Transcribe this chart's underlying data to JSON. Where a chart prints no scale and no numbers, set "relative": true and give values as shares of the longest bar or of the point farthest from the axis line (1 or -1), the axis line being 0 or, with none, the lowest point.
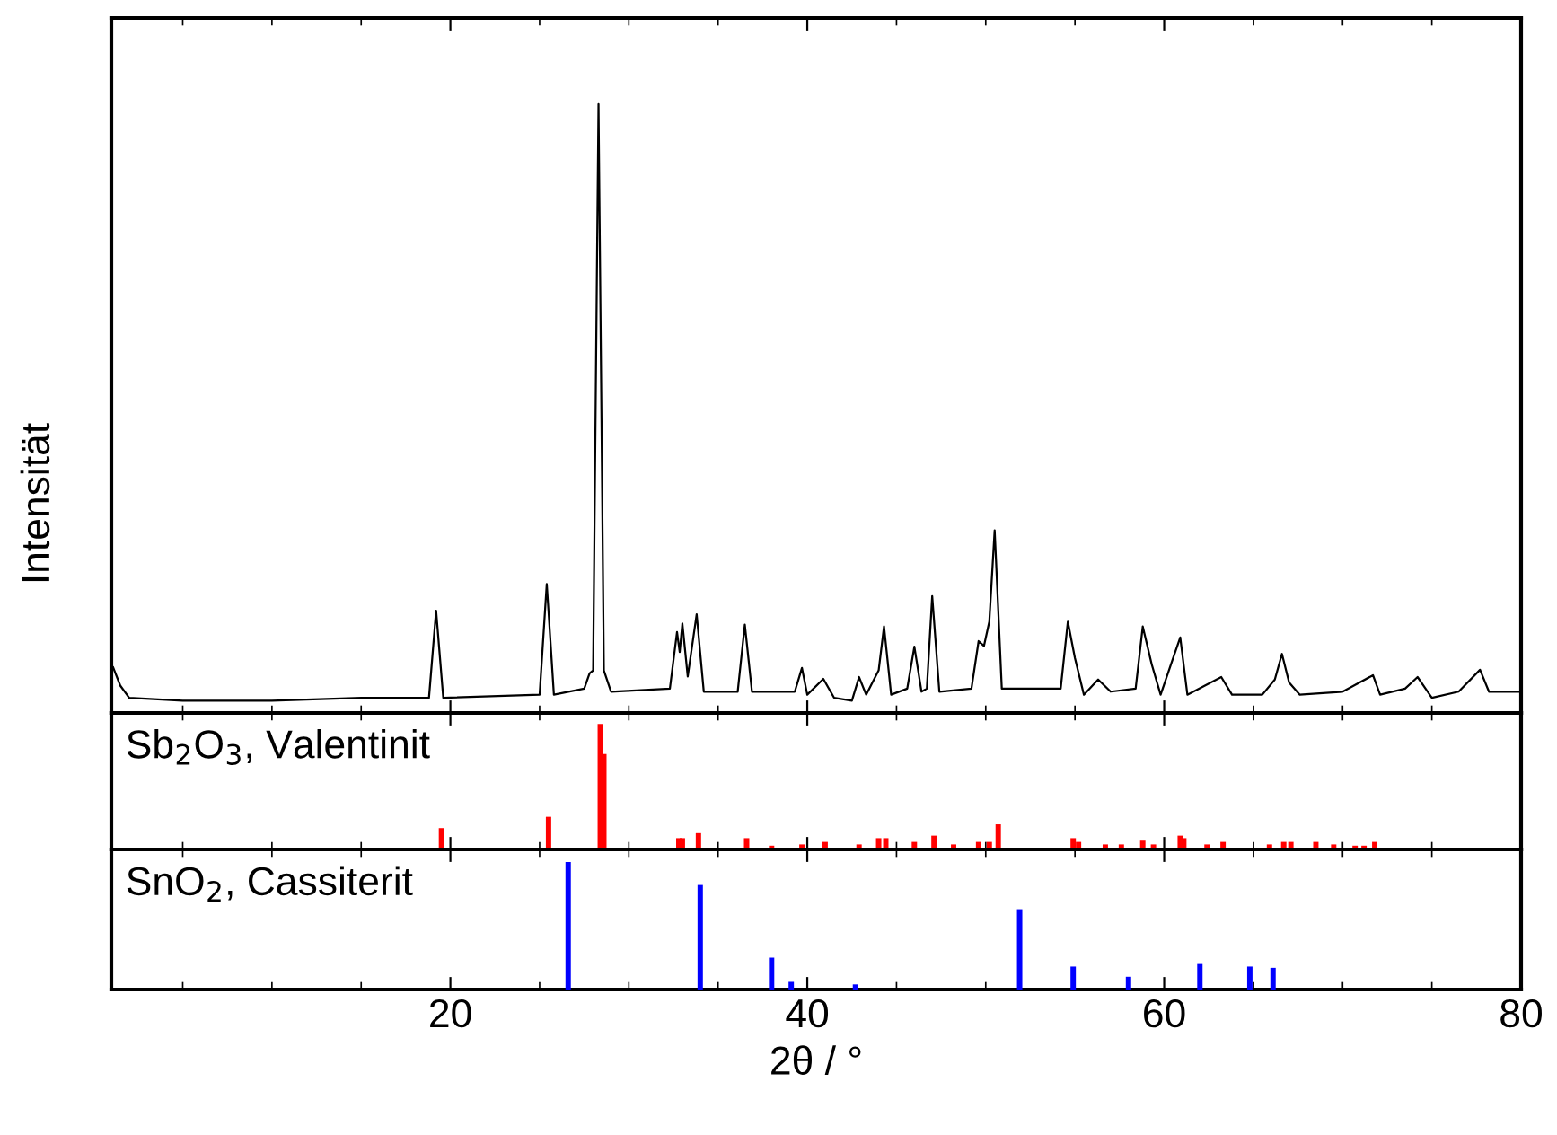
{
  "chart_data": [
    {
      "type": "line",
      "relative": true,
      "ylabel": "Intensität",
      "xlim": [
        1,
        80
      ],
      "xticks": [
        20,
        40,
        60,
        80
      ],
      "tick_labels": false,
      "grid": false,
      "marker": "none",
      "line_style": "solid",
      "series": [
        {
          "color": "#000000",
          "x": [
            1.1,
            1.5,
            2,
            5,
            10,
            15,
            18.8,
            19.2,
            19.6,
            25.0,
            25.4,
            25.8,
            27.5,
            27.8,
            28.0,
            28.3,
            28.6,
            29,
            32.3,
            32.7,
            32.85,
            33.0,
            33.3,
            33.8,
            34.2,
            36.1,
            36.5,
            36.9,
            39.3,
            39.7,
            40.0,
            40.9,
            41.5,
            42.5,
            42.9,
            43.3,
            44.0,
            44.3,
            44.7,
            45.6,
            46.0,
            46.4,
            46.7,
            47.0,
            47.4,
            49.2,
            49.6,
            49.9,
            50.2,
            50.5,
            50.9,
            54.2,
            54.6,
            55.0,
            55.5,
            56.3,
            57.0,
            58.4,
            58.8,
            59.3,
            59.8,
            60.5,
            60.9,
            61.3,
            63.2,
            63.8,
            65.5,
            66.2,
            66.6,
            67.0,
            67.6,
            70,
            71.7,
            72.1,
            73.5,
            74.2,
            75.0,
            76.5,
            77.7,
            78.2,
            80
          ],
          "values": [
            0.075,
            0.045,
            0.025,
            0.02,
            0.02,
            0.025,
            0.025,
            0.168,
            0.025,
            0.03,
            0.212,
            0.03,
            0.04,
            0.065,
            0.07,
            1.0,
            0.07,
            0.035,
            0.04,
            0.133,
            0.1,
            0.147,
            0.06,
            0.162,
            0.035,
            0.035,
            0.145,
            0.035,
            0.035,
            0.074,
            0.03,
            0.056,
            0.025,
            0.02,
            0.059,
            0.03,
            0.07,
            0.142,
            0.03,
            0.04,
            0.109,
            0.035,
            0.04,
            0.192,
            0.035,
            0.04,
            0.118,
            0.11,
            0.15,
            0.3,
            0.04,
            0.04,
            0.15,
            0.09,
            0.03,
            0.055,
            0.035,
            0.04,
            0.142,
            0.08,
            0.03,
            0.09,
            0.124,
            0.03,
            0.059,
            0.03,
            0.03,
            0.055,
            0.097,
            0.05,
            0.03,
            0.035,
            0.062,
            0.03,
            0.04,
            0.059,
            0.025,
            0.035,
            0.071,
            0.035,
            0.035
          ]
        }
      ]
    },
    {
      "type": "bar",
      "relative": true,
      "xlim": [
        1,
        80
      ],
      "xticks": [
        20,
        40,
        60,
        80
      ],
      "tick_labels": false,
      "annotations": [
        "Sb$_{2}$O$_{3}$, Valentinit"
      ],
      "series": [
        {
          "color": "#ff0000",
          "x": [
            19.5,
            25.5,
            28.4,
            28.6,
            32.8,
            33.0,
            33.9,
            36.6,
            38.0,
            39.7,
            41.0,
            42.9,
            44.0,
            44.4,
            46.0,
            47.1,
            48.2,
            49.6,
            50.2,
            50.7,
            54.9,
            55.2,
            56.7,
            57.6,
            58.8,
            59.4,
            60.9,
            61.1,
            62.4,
            63.3,
            65.9,
            66.7,
            67.1,
            68.5,
            69.5,
            70.7,
            71.2,
            71.8
          ],
          "values": [
            0.17,
            0.26,
            1.0,
            0.76,
            0.09,
            0.09,
            0.13,
            0.09,
            0.03,
            0.04,
            0.06,
            0.04,
            0.09,
            0.09,
            0.06,
            0.11,
            0.04,
            0.06,
            0.06,
            0.2,
            0.09,
            0.06,
            0.04,
            0.04,
            0.07,
            0.04,
            0.11,
            0.09,
            0.04,
            0.06,
            0.04,
            0.06,
            0.06,
            0.06,
            0.04,
            0.03,
            0.03,
            0.06
          ]
        }
      ]
    },
    {
      "type": "bar",
      "relative": true,
      "xlabel": "2θ / °",
      "xlim": [
        1,
        80
      ],
      "xticks": [
        20,
        40,
        60,
        80
      ],
      "tick_labels": "x",
      "annotations": [
        "SnO$_{2}$, Cassiterit"
      ],
      "series": [
        {
          "color": "#0000ff",
          "x": [
            26.6,
            34.0,
            38.0,
            39.1,
            42.7,
            51.9,
            54.9,
            58.0,
            62.0,
            64.8,
            66.1
          ],
          "values": [
            1.0,
            0.82,
            0.25,
            0.06,
            0.04,
            0.63,
            0.18,
            0.1,
            0.2,
            0.18,
            0.17
          ]
        }
      ]
    }
  ]
}
